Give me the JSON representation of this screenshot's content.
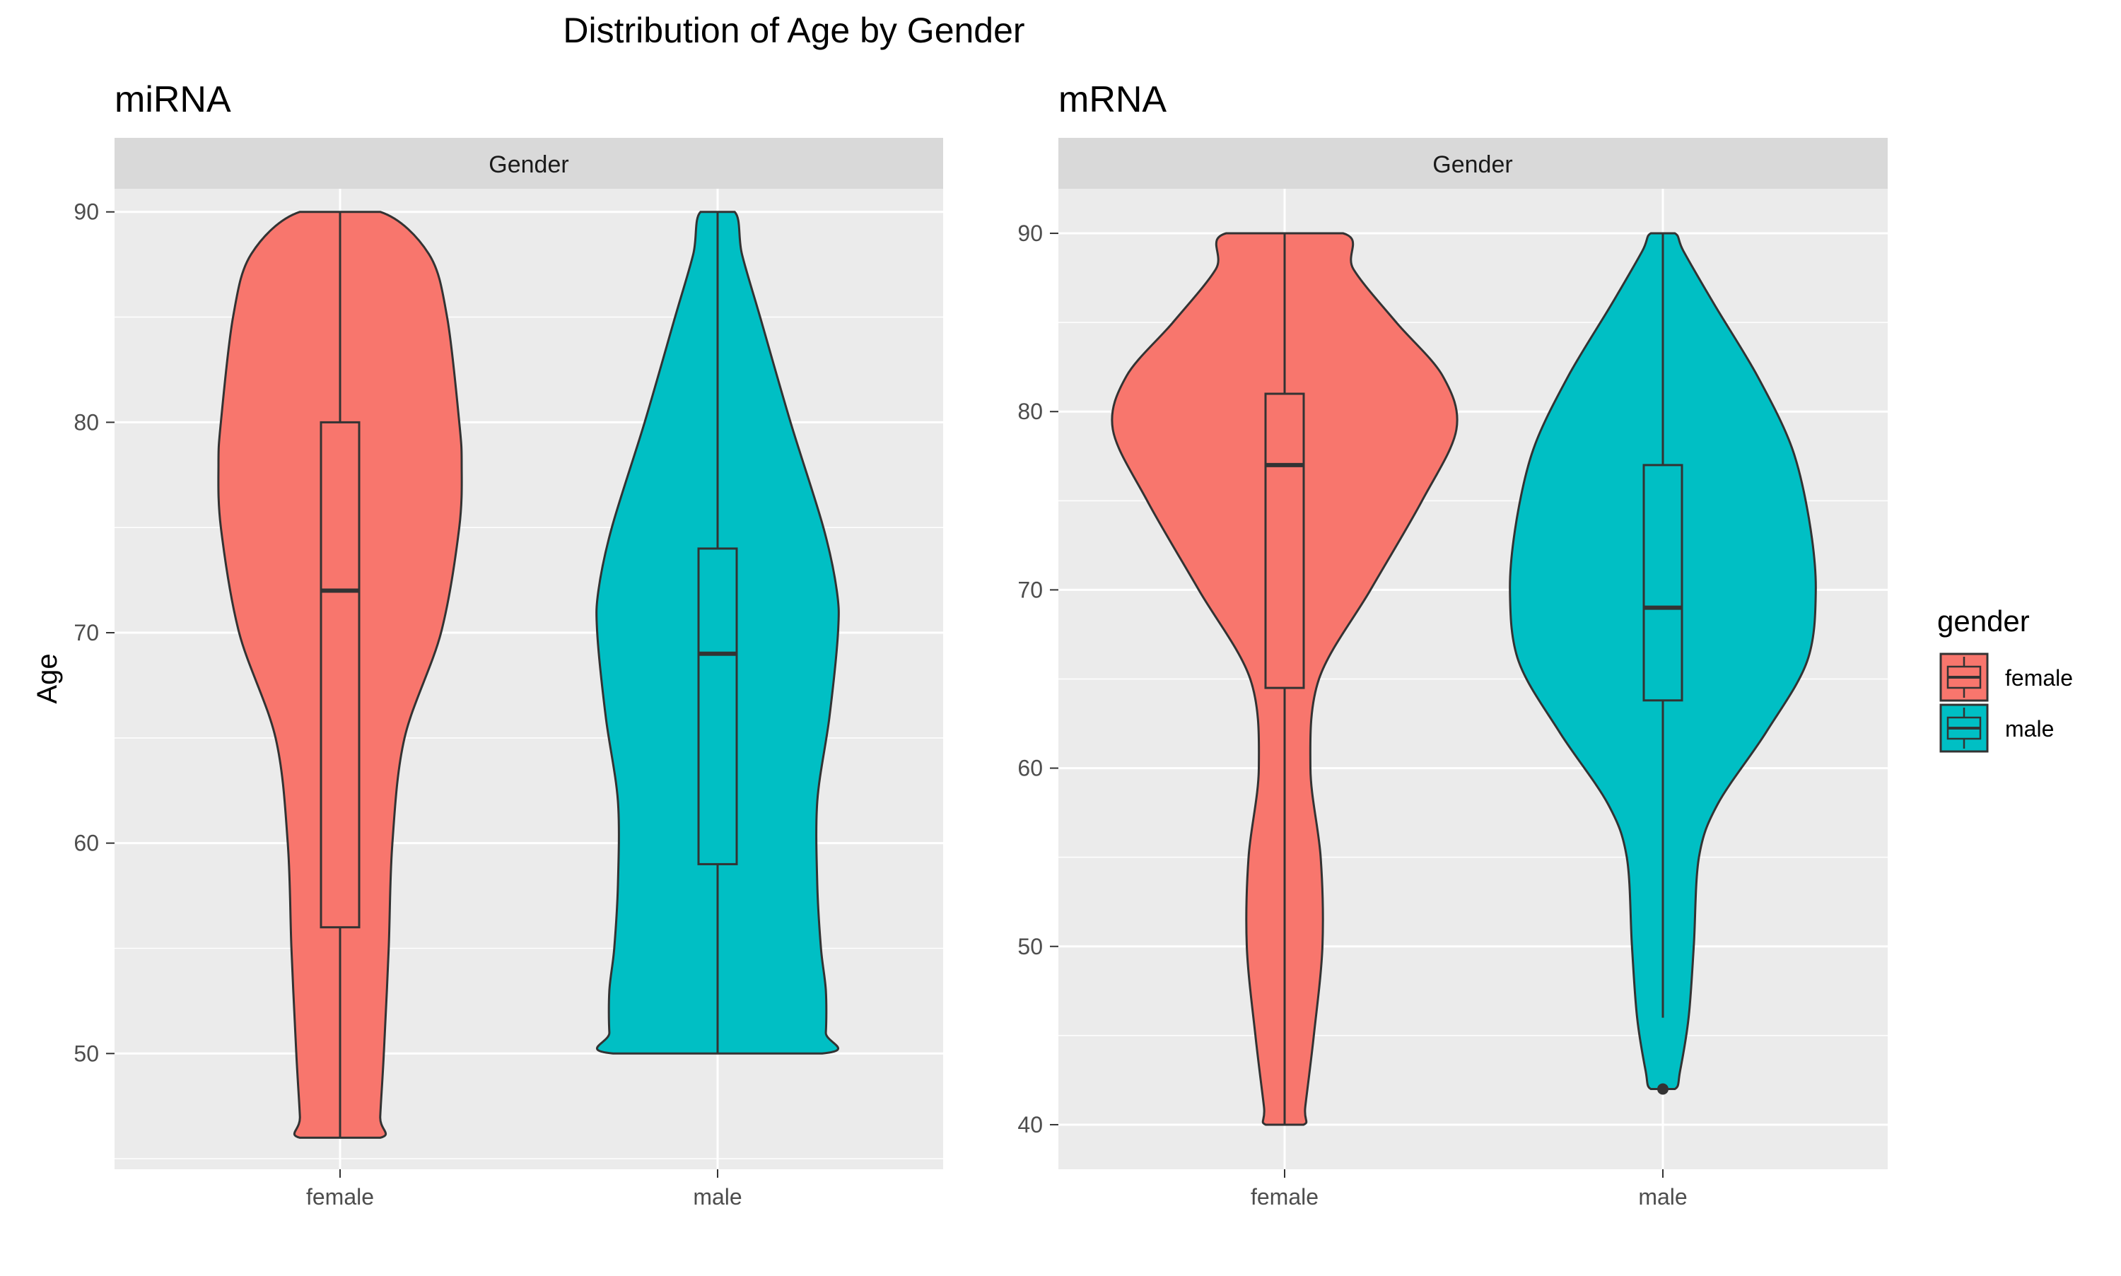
{
  "title": "Distribution of Age by Gender",
  "legend": {
    "title": "gender",
    "items": [
      {
        "label": "female",
        "color": "#F8766D"
      },
      {
        "label": "male",
        "color": "#00BFC4"
      }
    ]
  },
  "chart_data": [
    {
      "type": "violin",
      "title": "miRNA",
      "strip": "Gender",
      "xlabel": "",
      "ylabel": "Age",
      "categories": [
        "female",
        "male"
      ],
      "ylim": [
        44.5,
        91.1
      ],
      "yticks": [
        50,
        60,
        70,
        80,
        90
      ],
      "grid": true,
      "groups": [
        {
          "name": "female",
          "color": "#F8766D",
          "min": 46,
          "q1": 56,
          "median": 72,
          "q3": 80,
          "max": 90,
          "outliers": []
        },
        {
          "name": "male",
          "color": "#00BFC4",
          "min": 50,
          "q1": 59,
          "median": 69,
          "q3": 74,
          "max": 90,
          "outliers": []
        }
      ]
    },
    {
      "type": "violin",
      "title": "mRNA",
      "strip": "Gender",
      "xlabel": "",
      "ylabel": "",
      "categories": [
        "female",
        "male"
      ],
      "ylim": [
        37.5,
        92.5
      ],
      "yticks": [
        40,
        50,
        60,
        70,
        80,
        90
      ],
      "grid": true,
      "groups": [
        {
          "name": "female",
          "color": "#F8766D",
          "min": 40,
          "q1": 64.5,
          "median": 77,
          "q3": 81,
          "max": 90,
          "outliers": []
        },
        {
          "name": "male",
          "color": "#00BFC4",
          "min": 46,
          "q1": 63.8,
          "median": 69,
          "q3": 77,
          "max": 90,
          "outliers": [
            42
          ]
        }
      ]
    }
  ]
}
